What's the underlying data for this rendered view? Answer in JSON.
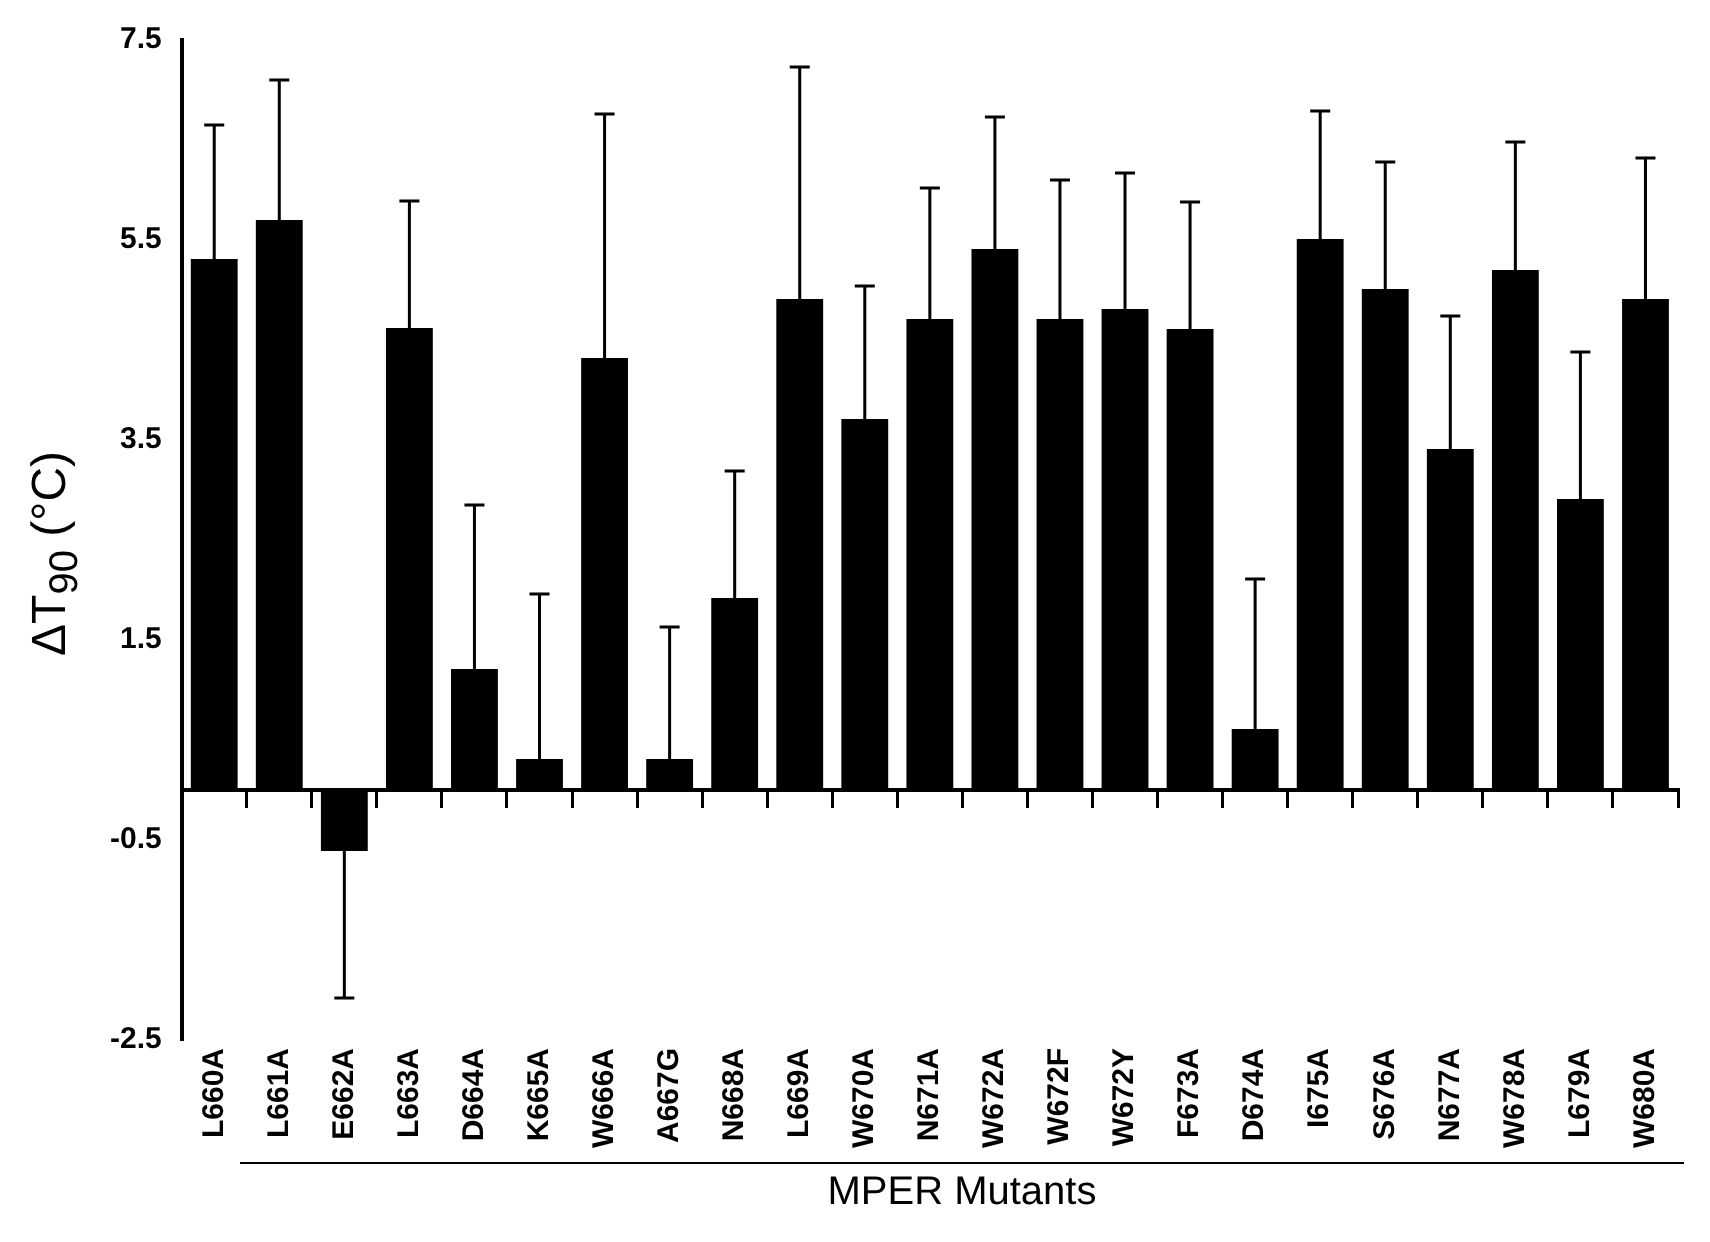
{
  "chart_data": {
    "type": "bar",
    "ylabel": "ΔT$_{90}$ (°C)",
    "xlabel": "MPER Mutants",
    "categories": [
      "L660A",
      "L661A",
      "E662A",
      "L663A",
      "D664A",
      "K665A",
      "W666A",
      "A667G",
      "N668A",
      "L669A",
      "W670A",
      "N671A",
      "W672A",
      "W672F",
      "W672Y",
      "F673A",
      "D674A",
      "I675A",
      "S676A",
      "N677A",
      "W678A",
      "L679A",
      "W680A"
    ],
    "values": [
      5.31,
      5.7,
      -0.61,
      4.62,
      1.21,
      0.31,
      4.32,
      0.31,
      1.92,
      4.91,
      3.71,
      4.71,
      5.41,
      4.71,
      4.81,
      4.61,
      0.61,
      5.51,
      5.01,
      3.41,
      5.2,
      2.91,
      4.91
    ],
    "errors": [
      [
        5.31,
        6.65
      ],
      [
        5.7,
        7.1
      ],
      [
        -2.08,
        -0.61
      ],
      [
        4.62,
        5.89
      ],
      [
        1.21,
        2.85
      ],
      [
        0.31,
        1.96
      ],
      [
        4.32,
        6.76
      ],
      [
        0.31,
        1.63
      ],
      [
        1.92,
        3.19
      ],
      [
        4.91,
        7.23
      ],
      [
        3.71,
        5.04
      ],
      [
        4.71,
        6.02
      ],
      [
        5.41,
        6.73
      ],
      [
        4.71,
        6.1
      ],
      [
        4.81,
        6.17
      ],
      [
        4.61,
        5.88
      ],
      [
        0.61,
        2.11
      ],
      [
        5.51,
        6.79
      ],
      [
        5.01,
        6.28
      ],
      [
        3.41,
        4.74
      ],
      [
        5.2,
        6.48
      ],
      [
        2.91,
        4.38
      ],
      [
        4.91,
        6.32
      ]
    ],
    "color": "#000000",
    "ylim": [
      -2.5,
      7.5
    ],
    "yticks": [
      -2.5,
      -0.5,
      1.5,
      3.5,
      5.5,
      7.5
    ],
    "grid": false,
    "legend": false
  }
}
